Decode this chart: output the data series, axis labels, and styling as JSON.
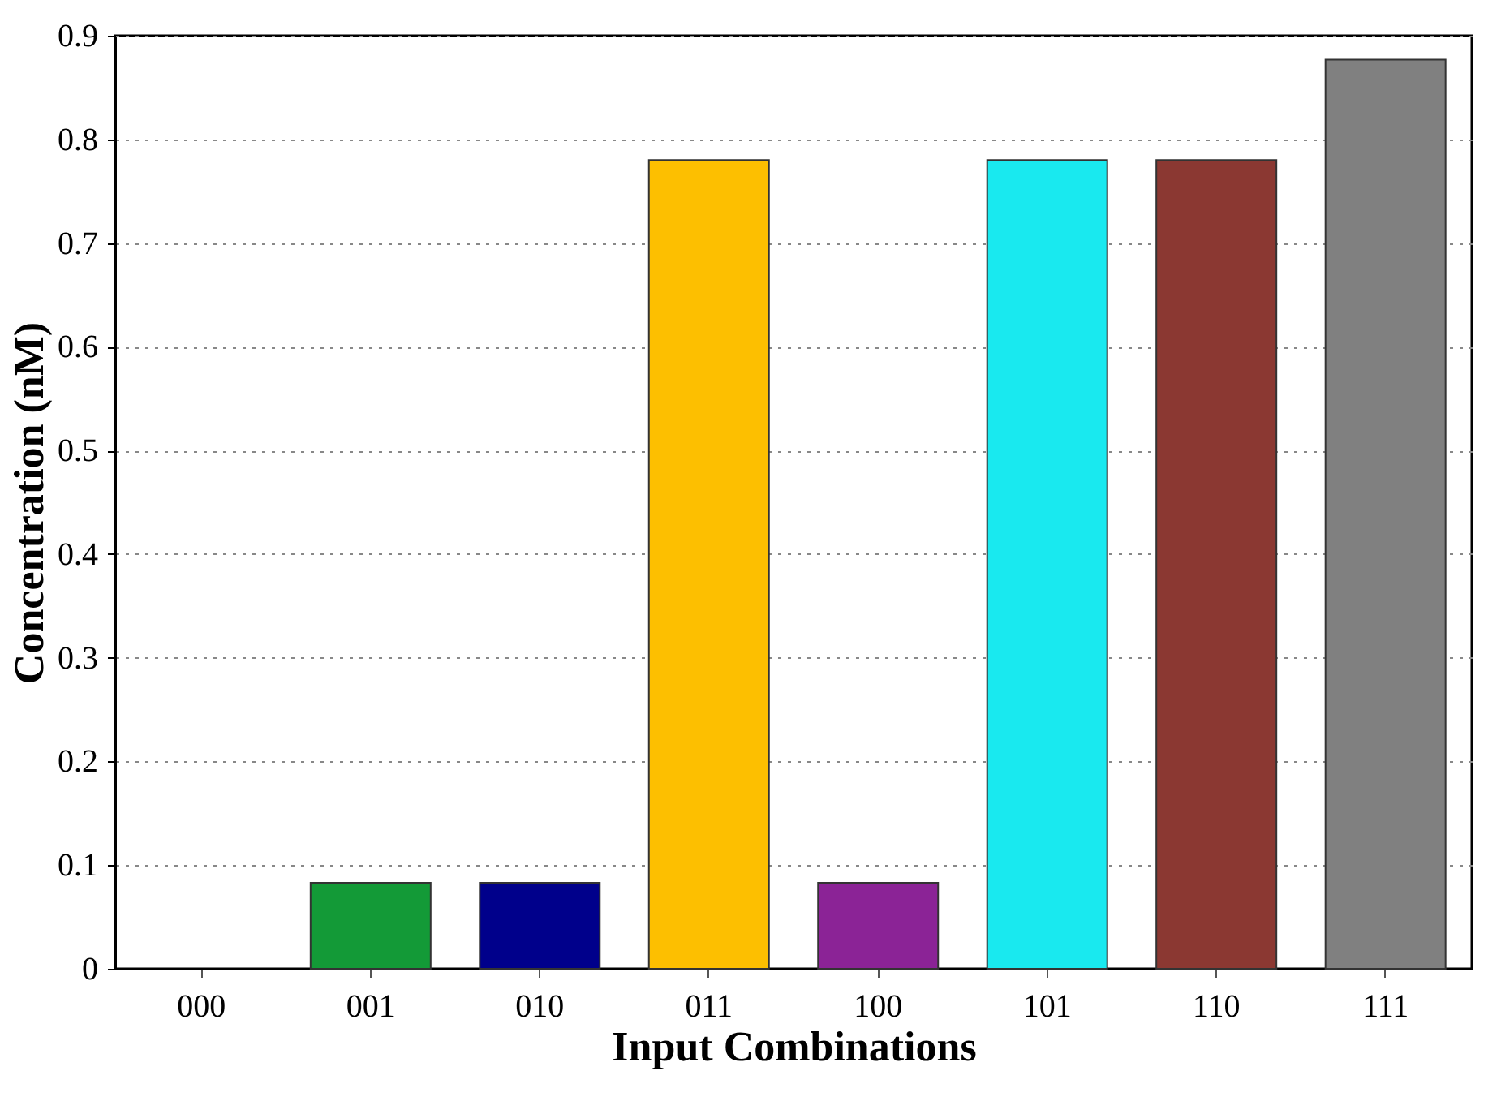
{
  "chart_data": {
    "type": "bar",
    "xlabel": "Input Combinations",
    "ylabel": "Concentration (nM)",
    "categories": [
      "000",
      "001",
      "010",
      "011",
      "100",
      "101",
      "110",
      "111"
    ],
    "values": [
      0,
      0.083,
      0.083,
      0.78,
      0.083,
      0.78,
      0.78,
      0.877
    ],
    "colors": [
      "#ffffff",
      "#139a37",
      "#00008b",
      "#fdbf00",
      "#8b2396",
      "#19e9ef",
      "#8b3832",
      "#808080"
    ],
    "ylim": [
      0,
      0.9
    ],
    "yticks": [
      0,
      0.1,
      0.2,
      0.3,
      0.4,
      0.5,
      0.6,
      0.7,
      0.8,
      0.9
    ],
    "grid": "y"
  }
}
